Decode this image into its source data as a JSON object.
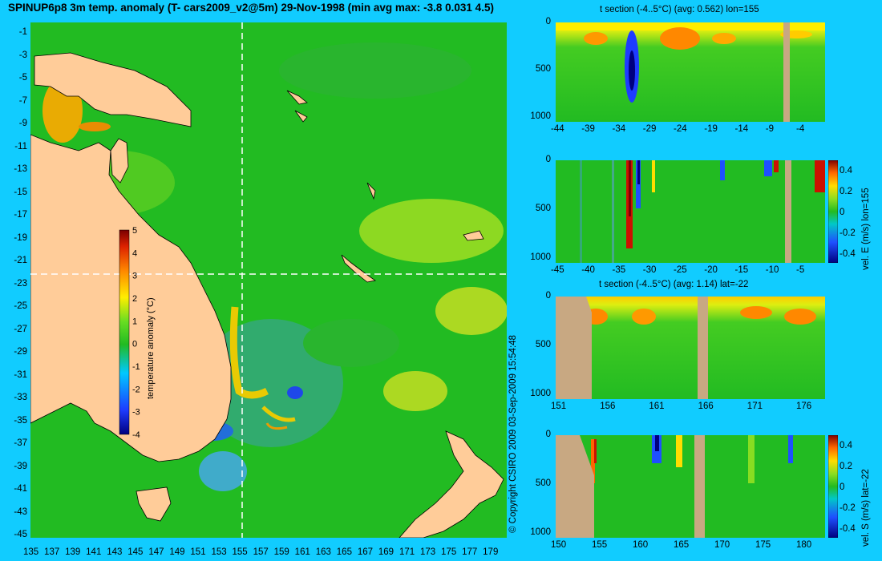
{
  "title": "SPINUP6p8 3m temp. anomaly (T- cars2009_v2@5m) 29-Nov-1998 (min avg max: -3.8 0.031 4.5)",
  "copyright": "© Copyright CSIRO 2009   03-Sep-2009 15:54:48",
  "colors": {
    "background": "#11ccff",
    "land": "#ffcc99",
    "section_land": "#c8a882",
    "ocean": "#22bb22"
  },
  "chart_data": [
    {
      "type": "heatmap",
      "name": "map",
      "title": "SPINUP6p8 3m temp. anomaly (T- cars2009_v2@5m) 29-Nov-1998 (min avg max: -3.8 0.031 4.5)",
      "x_ticks": [
        "135",
        "137",
        "139",
        "141",
        "143",
        "145",
        "147",
        "149",
        "151",
        "153",
        "155",
        "157",
        "159",
        "161",
        "163",
        "165",
        "167",
        "169",
        "171",
        "173",
        "175",
        "177",
        "179"
      ],
      "y_ticks": [
        "-1",
        "-3",
        "-5",
        "-7",
        "-9",
        "-11",
        "-13",
        "-15",
        "-17",
        "-19",
        "-21",
        "-23",
        "-25",
        "-27",
        "-29",
        "-31",
        "-33",
        "-35",
        "-37",
        "-39",
        "-41",
        "-43",
        "-45"
      ],
      "xlim": [
        134,
        180
      ],
      "ylim": [
        -45,
        0
      ],
      "section_lon": 155,
      "section_lat": -22,
      "colorbar": {
        "label": "temperature anomaly (°C)",
        "ticks": [
          "5",
          "4",
          "3",
          "2",
          "1",
          "0",
          "-1",
          "-2",
          "-3",
          "-4"
        ],
        "range": [
          -4,
          5
        ]
      }
    },
    {
      "type": "heatmap",
      "name": "t-section-lon155",
      "title": "t section (-4..5°C) (avg: 0.562) lon=155",
      "x_ticks": [
        "-44",
        "-39",
        "-34",
        "-29",
        "-24",
        "-19",
        "-14",
        "-9",
        "-4"
      ],
      "y_ticks": [
        "0",
        "500",
        "1000"
      ]
    },
    {
      "type": "heatmap",
      "name": "vel-e-section-lon155",
      "x_ticks": [
        "-45",
        "-40",
        "-35",
        "-30",
        "-25",
        "-20",
        "-15",
        "-10",
        "-5"
      ],
      "y_ticks": [
        "0",
        "500",
        "1000"
      ],
      "colorbar": {
        "label": "vel. E (m/s) lon=155",
        "ticks": [
          "0.4",
          "0.2",
          "0",
          "-0.2",
          "-0.4"
        ]
      }
    },
    {
      "type": "heatmap",
      "name": "t-section-lat-22",
      "title": "t section (-4..5°C) (avg: 1.14) lat=-22",
      "x_ticks": [
        "151",
        "156",
        "161",
        "166",
        "171",
        "176"
      ],
      "y_ticks": [
        "0",
        "500",
        "1000"
      ]
    },
    {
      "type": "heatmap",
      "name": "vel-s-section-lat-22",
      "x_ticks": [
        "150",
        "155",
        "160",
        "165",
        "170",
        "175",
        "180"
      ],
      "y_ticks": [
        "0",
        "500",
        "1000"
      ],
      "colorbar": {
        "label": "vel. S (m/s) lat=-22",
        "ticks": [
          "0.4",
          "0.2",
          "0",
          "-0.2",
          "-0.4"
        ]
      }
    }
  ]
}
